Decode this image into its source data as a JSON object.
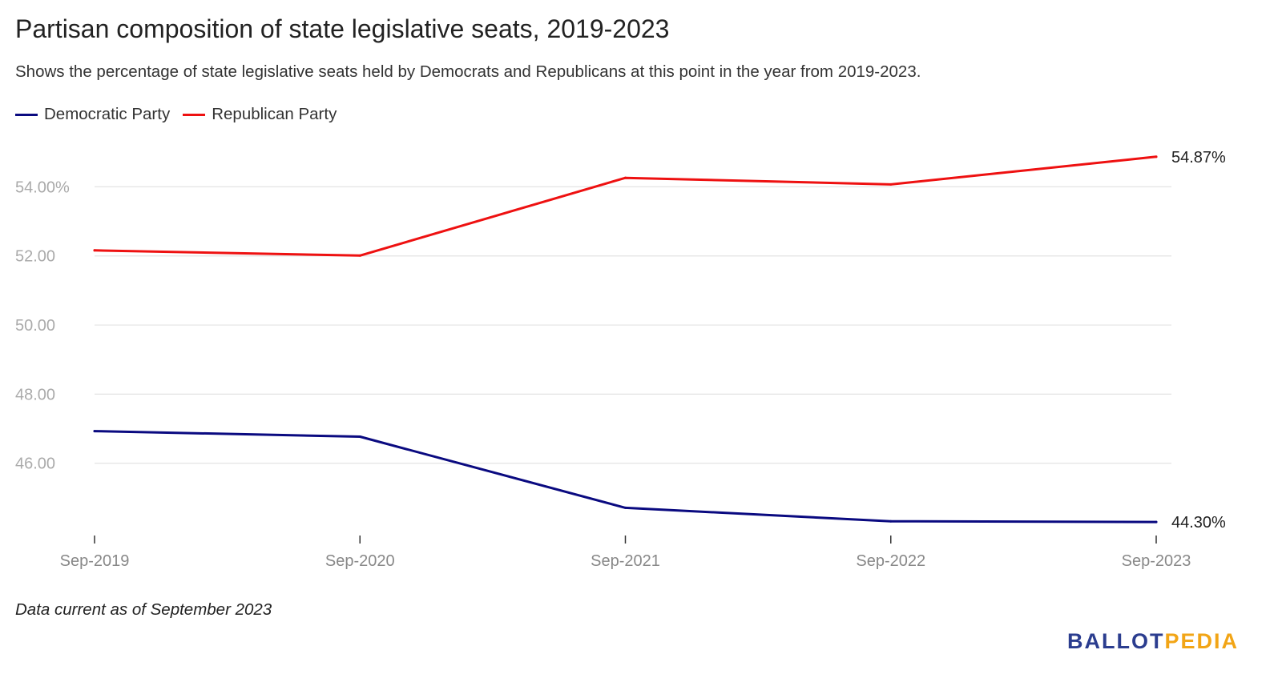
{
  "title": "Partisan composition of state legislative seats, 2019-2023",
  "subtitle": "Shows the percentage of state legislative seats held by Democrats and Republicans at this point in the year from 2019-2023.",
  "footnote": "Data current as of September 2023",
  "brand": {
    "part1": "BALLOT",
    "part2": "PEDIA",
    "color1": "#2b3d8f",
    "color2": "#f2a516"
  },
  "chart_data": {
    "type": "line",
    "title": "Partisan composition of state legislative seats, 2019-2023",
    "xlabel": "",
    "ylabel": "",
    "categories": [
      "Sep-2019",
      "Sep-2020",
      "Sep-2021",
      "Sep-2022",
      "Sep-2023"
    ],
    "yticks": [
      46,
      48,
      50,
      52,
      54
    ],
    "ytick_labels": [
      "46.00",
      "48.00",
      "50.00",
      "52.00",
      "54.00%"
    ],
    "ylim": [
      43.7,
      55.7
    ],
    "grid": true,
    "legend_position": "top-left",
    "series": [
      {
        "name": "Democratic Party",
        "color": "#0a0a80",
        "values": [
          46.93,
          46.77,
          44.71,
          44.32,
          44.3
        ],
        "end_label": "44.30%"
      },
      {
        "name": "Republican Party",
        "color": "#ee1111",
        "values": [
          52.16,
          52.01,
          54.26,
          54.07,
          54.87
        ],
        "end_label": "54.87%"
      }
    ]
  }
}
